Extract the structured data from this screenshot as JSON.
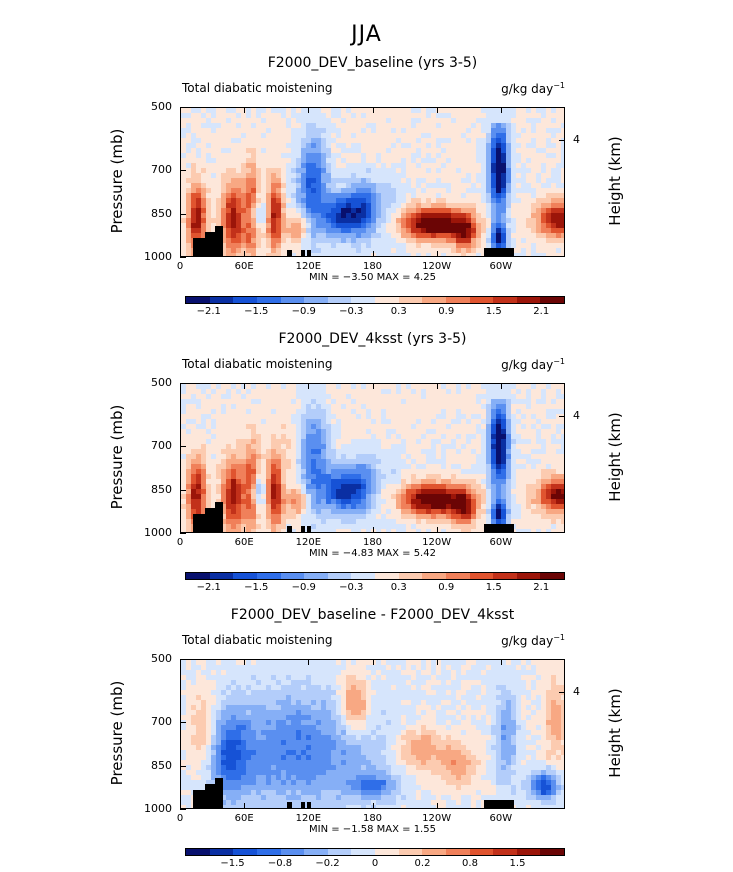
{
  "suptitle": "JJA",
  "colors": {
    "scale": [
      "#08106e",
      "#0a2fa3",
      "#1652d6",
      "#2f6ee8",
      "#5a8ff0",
      "#86aff6",
      "#b3cdfa",
      "#d6e5fc",
      "#fde7da",
      "#fccbb0",
      "#f8a883",
      "#f0805a",
      "#e0542f",
      "#c2311a",
      "#9b1509",
      "#6b0505"
    ],
    "background": "#ffffff",
    "mask": "#000000"
  },
  "chart_data": [
    {
      "type": "heatmap",
      "title": "F2000_DEV_baseline (yrs 3-5)",
      "left_string": "Total diabatic moistening",
      "right_string": "g/kg day",
      "right_string_exponent": "−1",
      "ylabel": "Pressure (mb)",
      "ylabel_right": "Height (km)",
      "yticks": [
        "500",
        "700",
        "850",
        "1000"
      ],
      "yticks_right": [
        "4"
      ],
      "xticks": [
        "0",
        "60E",
        "120E",
        "180",
        "120W",
        "60W"
      ],
      "minmax_text": "MIN =   −3.50   MAX =    4.25",
      "min": -3.5,
      "max": 4.25,
      "colorbar_labels": [
        "−2.1",
        "−1.5",
        "−0.9",
        "−0.3",
        "0.3",
        "0.9",
        "1.5",
        "2.1"
      ]
    },
    {
      "type": "heatmap",
      "title": "F2000_DEV_4ksst (yrs 3-5)",
      "left_string": "Total diabatic moistening",
      "right_string": "g/kg day",
      "right_string_exponent": "−1",
      "ylabel": "Pressure (mb)",
      "ylabel_right": "Height (km)",
      "yticks": [
        "500",
        "700",
        "850",
        "1000"
      ],
      "yticks_right": [
        "4"
      ],
      "xticks": [
        "0",
        "60E",
        "120E",
        "180",
        "120W",
        "60W"
      ],
      "minmax_text": "MIN =   −4.83   MAX =    5.42",
      "min": -4.83,
      "max": 5.42,
      "colorbar_labels": [
        "−2.1",
        "−1.5",
        "−0.9",
        "−0.3",
        "0.3",
        "0.9",
        "1.5",
        "2.1"
      ]
    },
    {
      "type": "heatmap",
      "title": "F2000_DEV_baseline - F2000_DEV_4ksst",
      "left_string": "Total diabatic moistening",
      "right_string": "g/kg day",
      "right_string_exponent": "−1",
      "ylabel": "Pressure (mb)",
      "ylabel_right": "Height (km)",
      "yticks": [
        "500",
        "700",
        "850",
        "1000"
      ],
      "yticks_right": [
        "4"
      ],
      "xticks": [
        "0",
        "60E",
        "120E",
        "180",
        "120W",
        "60W"
      ],
      "minmax_text": "MIN =   −1.58   MAX =    1.55",
      "min": -1.58,
      "max": 1.55,
      "colorbar_labels": [
        "−1.5",
        "−0.8",
        "−0.2",
        "0",
        "0.2",
        "0.8",
        "1.5"
      ]
    }
  ]
}
